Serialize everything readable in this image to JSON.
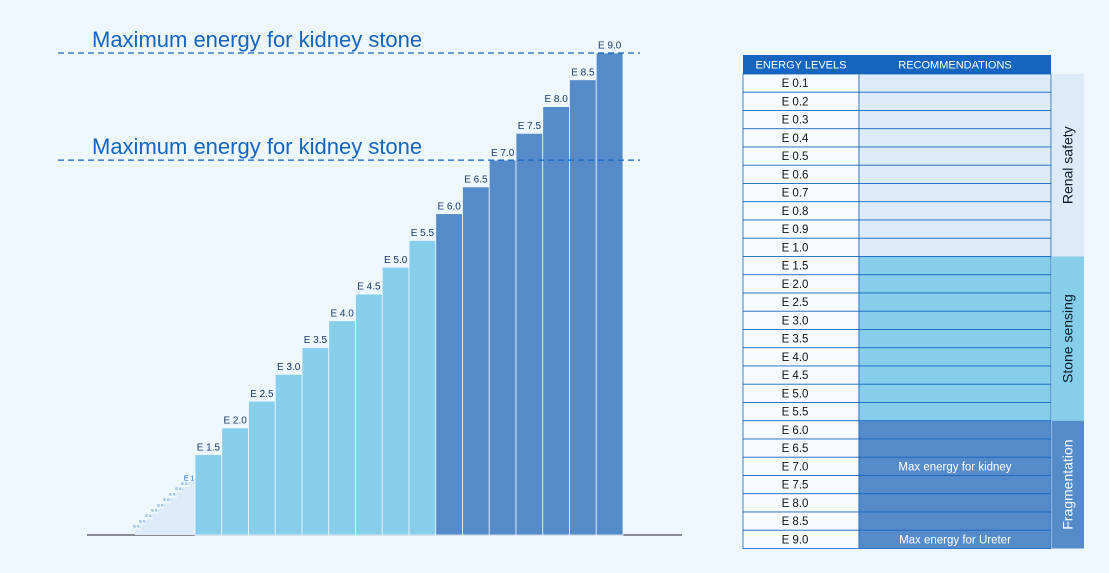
{
  "chart_data": {
    "type": "bar",
    "categories": [
      "E 0.1",
      "E 0.2",
      "E 0.3",
      "E 0.4",
      "E 0.5",
      "E 0.6",
      "E 0.7",
      "E 0.8",
      "E 0.9",
      "E 1.0",
      "E 1.5",
      "E 2.0",
      "E 2.5",
      "E 3.0",
      "E 3.5",
      "E 4.0",
      "E 4.5",
      "E 5.0",
      "E 5.5",
      "E 6.0",
      "E 6.5",
      "E 7.0",
      "E 7.5",
      "E 8.0",
      "E 8.5",
      "E 9.0"
    ],
    "series": [
      {
        "name": "Renal safety",
        "color": "#ddebf8",
        "values": [
          0.1,
          0.2,
          0.3,
          0.4,
          0.5,
          0.6,
          0.7,
          0.8,
          0.9,
          1.0,
          null,
          null,
          null,
          null,
          null,
          null,
          null,
          null,
          null,
          null,
          null,
          null,
          null,
          null,
          null,
          null
        ]
      },
      {
        "name": "Stone sensing",
        "color": "#87ceeb",
        "values": [
          null,
          null,
          null,
          null,
          null,
          null,
          null,
          null,
          null,
          null,
          1.5,
          2.0,
          2.5,
          3.0,
          3.5,
          4.0,
          4.5,
          5.0,
          5.5,
          null,
          null,
          null,
          null,
          null,
          null,
          null
        ]
      },
      {
        "name": "Fragmentation",
        "color": "#568bca",
        "values": [
          null,
          null,
          null,
          null,
          null,
          null,
          null,
          null,
          null,
          null,
          null,
          null,
          null,
          null,
          null,
          null,
          null,
          null,
          null,
          6.0,
          6.5,
          7.0,
          7.5,
          8.0,
          8.5,
          9.0
        ]
      }
    ],
    "ylim": [
      0,
      9
    ],
    "annotations": [
      {
        "text": "Maximum energy for kidney stone",
        "y": 9.0
      },
      {
        "text": "Maximum energy for kidney stone",
        "y": 7.0
      }
    ]
  },
  "table": {
    "header": [
      "ENERGY LEVELS",
      "RECOMMENDATIONS"
    ],
    "recommendations": [
      null,
      null,
      null,
      null,
      null,
      null,
      null,
      null,
      null,
      null,
      null,
      null,
      null,
      null,
      null,
      null,
      null,
      null,
      null,
      null,
      null,
      "Max energy for kidney",
      null,
      null,
      null,
      "Max energy for Ureter"
    ]
  }
}
